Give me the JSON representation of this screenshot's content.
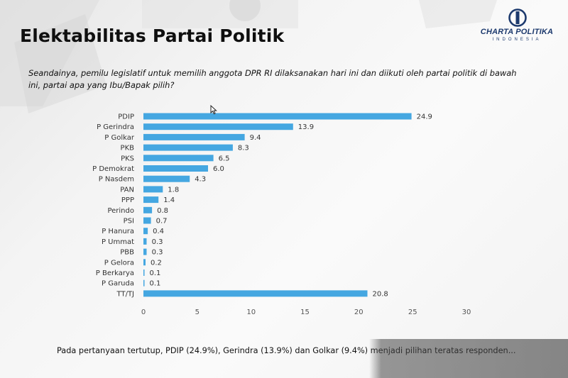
{
  "slide": {
    "title": "Elektabilitas Partai Politik",
    "question": "Seandainya, pemilu legislatif untuk memilih anggota DPR RI dilaksanakan hari ini dan diikuti oleh partai politik di bawah ini, partai apa yang Ibu/Bapak pilih?",
    "footer": "Pada pertanyaan tertutup, PDIP (24.9%), Gerindra (13.9%) dan Golkar (9.4%) menjadi pilihan teratas responden..."
  },
  "logo": {
    "name": "CHARTA POLITIKA",
    "subtitle": "INDONESIA"
  },
  "colors": {
    "bar": "#45a7e1",
    "logo": "#1d3a6e"
  },
  "chart_data": {
    "type": "bar",
    "orientation": "horizontal",
    "title": "Elektabilitas Partai Politik",
    "xlabel": "",
    "ylabel": "",
    "xlim": [
      0,
      30
    ],
    "ticks": [
      0,
      5,
      10,
      15,
      20,
      25,
      30
    ],
    "grid": false,
    "categories": [
      "PDIP",
      "P Gerindra",
      "P Golkar",
      "PKB",
      "PKS",
      "P Demokrat",
      "P Nasdem",
      "PAN",
      "PPP",
      "Perindo",
      "PSI",
      "P Hanura",
      "P Ummat",
      "PBB",
      "P Gelora",
      "P Berkarya",
      "P Garuda",
      "TT/TJ"
    ],
    "values": [
      24.9,
      13.9,
      9.4,
      8.3,
      6.5,
      6.0,
      4.3,
      1.8,
      1.4,
      0.8,
      0.7,
      0.4,
      0.3,
      0.3,
      0.2,
      0.1,
      0.1,
      20.8
    ],
    "value_labels": [
      "24.9",
      "13.9",
      "9.4",
      "8.3",
      "6.5",
      "6.0",
      "4.3",
      "1.8",
      "1.4",
      "0.8",
      "0.7",
      "0.4",
      "0.3",
      "0.3",
      "0.2",
      "0.1",
      "0.1",
      "20.8"
    ]
  }
}
